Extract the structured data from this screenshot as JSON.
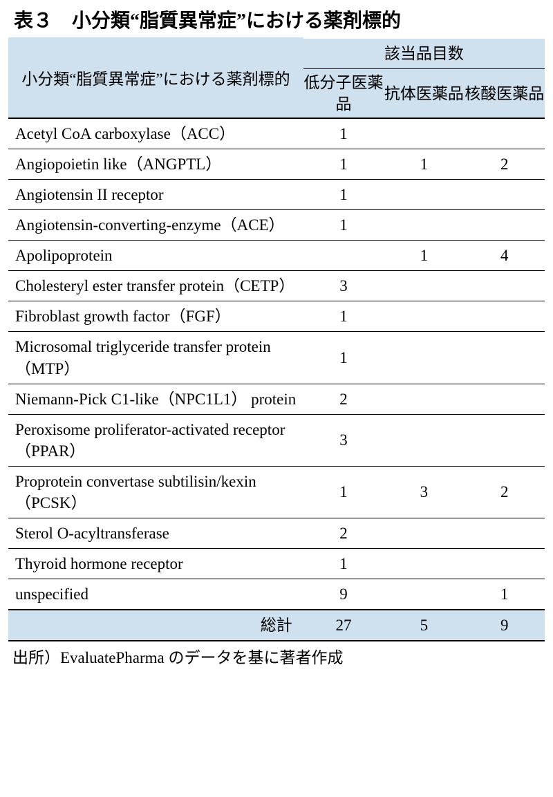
{
  "title": "表３　小分類“脂質異常症”における薬剤標的",
  "header": {
    "target_label": "小分類“脂質異常症”における薬剤標的",
    "category_label": "該当品目数",
    "sub_labels": {
      "small": "低分子医薬品",
      "antibody": "抗体医薬品",
      "nucleic": "核酸医薬品"
    }
  },
  "rows": [
    {
      "target": "Acetyl CoA carboxylase（ACC）",
      "small": "1",
      "antibody": "",
      "nucleic": ""
    },
    {
      "target": "Angiopoietin like（ANGPTL）",
      "small": "1",
      "antibody": "1",
      "nucleic": "2"
    },
    {
      "target": "Angiotensin II receptor",
      "small": "1",
      "antibody": "",
      "nucleic": ""
    },
    {
      "target": "Angiotensin-converting-enzyme（ACE）",
      "small": "1",
      "antibody": "",
      "nucleic": ""
    },
    {
      "target": "Apolipoprotein",
      "small": "",
      "antibody": "1",
      "nucleic": "4"
    },
    {
      "target": "Cholesteryl ester transfer protein（CETP）",
      "small": "3",
      "antibody": "",
      "nucleic": ""
    },
    {
      "target": "Fibroblast growth factor（FGF）",
      "small": "1",
      "antibody": "",
      "nucleic": ""
    },
    {
      "target": "Microsomal triglyceride transfer protein（MTP）",
      "small": "1",
      "antibody": "",
      "nucleic": ""
    },
    {
      "target": "Niemann-Pick C1-like（NPC1L1） protein",
      "small": "2",
      "antibody": "",
      "nucleic": ""
    },
    {
      "target": "Peroxisome proliferator-activated receptor（PPAR）",
      "small": "3",
      "antibody": "",
      "nucleic": ""
    },
    {
      "target": "Proprotein convertase subtilisin/kexin（PCSK）",
      "small": "1",
      "antibody": "3",
      "nucleic": "2"
    },
    {
      "target": "Sterol O-acyltransferase",
      "small": "2",
      "antibody": "",
      "nucleic": ""
    },
    {
      "target": "Thyroid hormone receptor",
      "small": "1",
      "antibody": "",
      "nucleic": ""
    },
    {
      "target": "unspecified",
      "small": "9",
      "antibody": "",
      "nucleic": "1"
    }
  ],
  "total": {
    "label": "総計",
    "small": "27",
    "antibody": "5",
    "nucleic": "9"
  },
  "footnote": "出所）EvaluatePharma のデータを基に著者作成",
  "styles": {
    "header_bg": "#cfe0ee",
    "text_color": "#000000",
    "body_bg": "#ffffff",
    "title_fontsize": 28,
    "body_fontsize": 23,
    "column_widths_pct": [
      55,
      15,
      15,
      15
    ]
  }
}
